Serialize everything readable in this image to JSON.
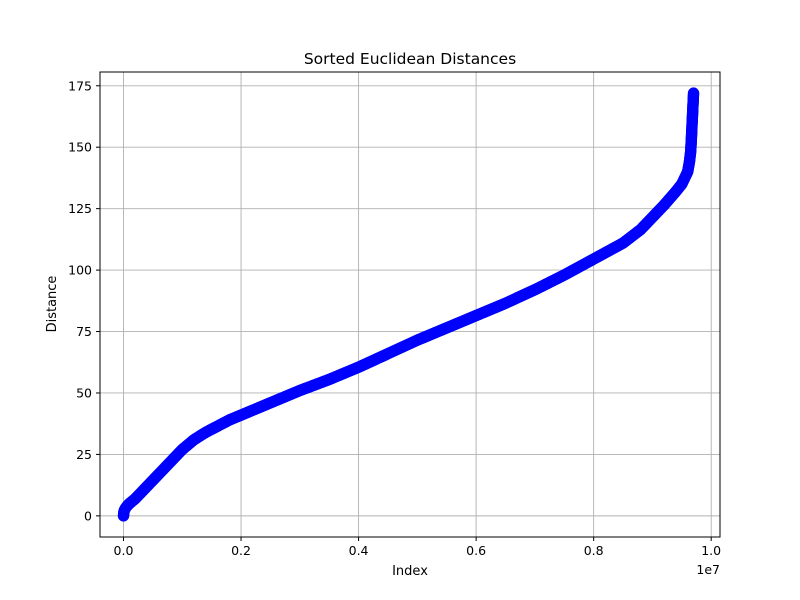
{
  "chart_data": {
    "type": "scatter",
    "title": "Sorted Euclidean Distances",
    "xlabel": "Index",
    "ylabel": "Distance",
    "x_offset_label": "1e7",
    "xlim": [
      -0.04,
      1.015
    ],
    "ylim": [
      -8.6,
      180.6
    ],
    "x_ticks": [
      0.0,
      0.2,
      0.4,
      0.6,
      0.8,
      1.0
    ],
    "x_tick_labels": [
      "0.0",
      "0.2",
      "0.4",
      "0.6",
      "0.8",
      "1.0"
    ],
    "y_ticks": [
      0,
      25,
      50,
      75,
      100,
      125,
      150,
      175
    ],
    "y_tick_labels": [
      "0",
      "25",
      "50",
      "75",
      "100",
      "125",
      "150",
      "175"
    ],
    "grid": true,
    "marker_color": "#0000ff",
    "marker_edge_color": "#0000ff",
    "series": [
      {
        "x": [
          0.0,
          0.0003,
          0.001,
          0.003,
          0.006,
          0.01,
          0.02,
          0.04,
          0.06,
          0.08,
          0.1,
          0.11,
          0.12,
          0.14,
          0.16,
          0.18,
          0.2,
          0.25,
          0.3,
          0.35,
          0.4,
          0.45,
          0.5,
          0.55,
          0.6,
          0.65,
          0.7,
          0.75,
          0.8,
          0.85,
          0.88,
          0.9,
          0.92,
          0.94,
          0.95,
          0.955,
          0.96,
          0.963,
          0.965,
          0.966,
          0.967,
          0.968,
          0.969,
          0.97
        ],
        "y": [
          0,
          1,
          2,
          3,
          4,
          5,
          7,
          12,
          17,
          22,
          27,
          29,
          31,
          34,
          36.5,
          39,
          41,
          46,
          51,
          55.5,
          60.5,
          66,
          71.5,
          76.5,
          81.5,
          86.5,
          92,
          98,
          104.5,
          111,
          116.5,
          121.5,
          126.5,
          132,
          135,
          137.5,
          140,
          144,
          148,
          152,
          157,
          162,
          167,
          172
        ]
      }
    ]
  }
}
